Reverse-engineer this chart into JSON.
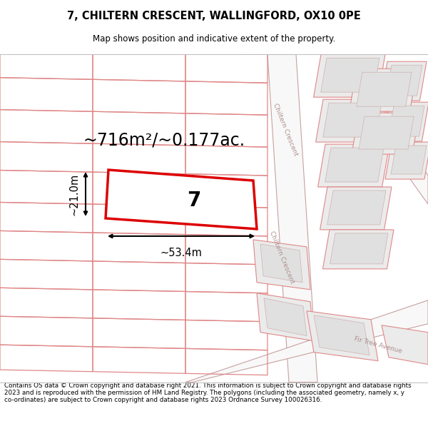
{
  "title": "7, CHILTERN CRESCENT, WALLINGFORD, OX10 0PE",
  "subtitle": "Map shows position and indicative extent of the property.",
  "footer": "Contains OS data © Crown copyright and database right 2021. This information is subject to Crown copyright and database rights 2023 and is reproduced with the permission of HM Land Registry. The polygons (including the associated geometry, namely x, y co-ordinates) are subject to Crown copyright and database rights 2023 Ordnance Survey 100026316.",
  "area_label": "~716m²/~0.177ac.",
  "width_label": "~53.4m",
  "height_label": "~21.0m",
  "plot_number": "7",
  "highlight_stroke": "#dd0000",
  "parcel_stroke": "#e08888",
  "road_stroke": "#c8a0a0",
  "building_fill": "#e0e0e0",
  "parcel_fill": "none",
  "road_fill": "#f5f5f5",
  "street_color": "#b09090",
  "street_name_crescent_upper": "Chiltern Crescent",
  "street_name_crescent_lower": "Chiltern Crescent",
  "street_name_fir": "Fir Tree Avenue"
}
